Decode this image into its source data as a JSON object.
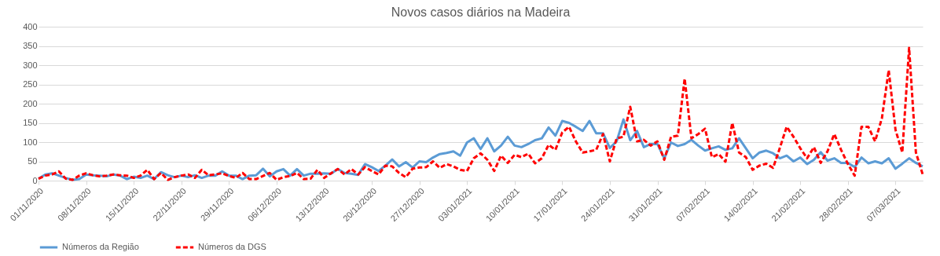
{
  "chart_data": {
    "type": "line",
    "title": "Novos casos diários na Madeira",
    "x": [
      "2020-11-01",
      "2020-11-02",
      "2020-11-03",
      "2020-11-04",
      "2020-11-05",
      "2020-11-06",
      "2020-11-07",
      "2020-11-08",
      "2020-11-09",
      "2020-11-10",
      "2020-11-11",
      "2020-11-12",
      "2020-11-13",
      "2020-11-14",
      "2020-11-15",
      "2020-11-16",
      "2020-11-17",
      "2020-11-18",
      "2020-11-19",
      "2020-11-20",
      "2020-11-21",
      "2020-11-22",
      "2020-11-23",
      "2020-11-24",
      "2020-11-25",
      "2020-11-26",
      "2020-11-27",
      "2020-11-28",
      "2020-11-29",
      "2020-11-30",
      "2020-12-01",
      "2020-12-02",
      "2020-12-03",
      "2020-12-04",
      "2020-12-05",
      "2020-12-06",
      "2020-12-07",
      "2020-12-08",
      "2020-12-09",
      "2020-12-10",
      "2020-12-11",
      "2020-12-12",
      "2020-12-13",
      "2020-12-14",
      "2020-12-15",
      "2020-12-16",
      "2020-12-17",
      "2020-12-18",
      "2020-12-19",
      "2020-12-20",
      "2020-12-21",
      "2020-12-22",
      "2020-12-23",
      "2020-12-24",
      "2020-12-25",
      "2020-12-26",
      "2020-12-27",
      "2020-12-28",
      "2020-12-29",
      "2020-12-30",
      "2020-12-31",
      "2021-01-01",
      "2021-01-02",
      "2021-01-03",
      "2021-01-04",
      "2021-01-05",
      "2021-01-06",
      "2021-01-07",
      "2021-01-08",
      "2021-01-09",
      "2021-01-10",
      "2021-01-11",
      "2021-01-12",
      "2021-01-13",
      "2021-01-14",
      "2021-01-15",
      "2021-01-16",
      "2021-01-17",
      "2021-01-18",
      "2021-01-19",
      "2021-01-20",
      "2021-01-21",
      "2021-01-22",
      "2021-01-23",
      "2021-01-24",
      "2021-01-25",
      "2021-01-26",
      "2021-01-27",
      "2021-01-28",
      "2021-01-29",
      "2021-01-30",
      "2021-01-31",
      "2021-02-01",
      "2021-02-02",
      "2021-02-03",
      "2021-02-04",
      "2021-02-05",
      "2021-02-06",
      "2021-02-07",
      "2021-02-08",
      "2021-02-09",
      "2021-02-10",
      "2021-02-11",
      "2021-02-12",
      "2021-02-13",
      "2021-02-14",
      "2021-02-15",
      "2021-02-16",
      "2021-02-17",
      "2021-02-18",
      "2021-02-19",
      "2021-02-20",
      "2021-02-21",
      "2021-02-22",
      "2021-02-23",
      "2021-02-24",
      "2021-02-25",
      "2021-02-26",
      "2021-02-27",
      "2021-02-28",
      "2021-03-01",
      "2021-03-02",
      "2021-03-03",
      "2021-03-04",
      "2021-03-05",
      "2021-03-06",
      "2021-03-07",
      "2021-03-08",
      "2021-03-09",
      "2021-03-10",
      "2021-03-11"
    ],
    "xlim": [
      "2020-11-01",
      "2021-03-11"
    ],
    "xticks": [
      {
        "value": "2020-11-01",
        "label": "01/11/2020"
      },
      {
        "value": "2020-11-08",
        "label": "08/11/2020"
      },
      {
        "value": "2020-11-15",
        "label": "15/11/2020"
      },
      {
        "value": "2020-11-22",
        "label": "22/11/2020"
      },
      {
        "value": "2020-11-29",
        "label": "29/11/2020"
      },
      {
        "value": "2020-12-06",
        "label": "06/12/2020"
      },
      {
        "value": "2020-12-13",
        "label": "13/12/2020"
      },
      {
        "value": "2020-12-20",
        "label": "20/12/2020"
      },
      {
        "value": "2020-12-27",
        "label": "27/12/2020"
      },
      {
        "value": "2021-01-03",
        "label": "03/01/2021"
      },
      {
        "value": "2021-01-10",
        "label": "10/01/2021"
      },
      {
        "value": "2021-01-17",
        "label": "17/01/2021"
      },
      {
        "value": "2021-01-24",
        "label": "24/01/2021"
      },
      {
        "value": "2021-01-31",
        "label": "31/01/2021"
      },
      {
        "value": "2021-02-07",
        "label": "07/02/2021"
      },
      {
        "value": "2021-02-14",
        "label": "14/02/2021"
      },
      {
        "value": "2021-02-21",
        "label": "21/02/2021"
      },
      {
        "value": "2021-02-28",
        "label": "28/02/2021"
      },
      {
        "value": "2021-03-07",
        "label": "07/03/2021"
      }
    ],
    "series": [
      {
        "name": "Números da Região",
        "color": "#5b9bd5",
        "line_style": "solid",
        "values": [
          5,
          16,
          19,
          13,
          7,
          2,
          4,
          16,
          14,
          13,
          11,
          16,
          13,
          4,
          10,
          7,
          13,
          4,
          22,
          14,
          9,
          13,
          9,
          14,
          7,
          13,
          13,
          24,
          13,
          13,
          4,
          13,
          14,
          31,
          11,
          24,
          30,
          13,
          30,
          13,
          18,
          18,
          19,
          18,
          30,
          20,
          18,
          15,
          43,
          35,
          25,
          39,
          55,
          37,
          48,
          34,
          50,
          48,
          60,
          69,
          72,
          76,
          65,
          99,
          110,
          82,
          110,
          76,
          91,
          114,
          91,
          87,
          95,
          105,
          110,
          138,
          117,
          155,
          150,
          140,
          129,
          155,
          123,
          123,
          85,
          102,
          159,
          105,
          129,
          87,
          95,
          95,
          58,
          99,
          90,
          95,
          106,
          91,
          78,
          84,
          89,
          80,
          84,
          110,
          84,
          58,
          73,
          78,
          71,
          58,
          65,
          50,
          60,
          43,
          54,
          74,
          52,
          58,
          46,
          46,
          35,
          60,
          45,
          50,
          45,
          58,
          31,
          44,
          58,
          46,
          37
        ]
      },
      {
        "name": "Números da DGS",
        "color": "#ff0000",
        "line_style": "dashed",
        "values": [
          5,
          13,
          16,
          24,
          5,
          2,
          13,
          19,
          14,
          11,
          13,
          16,
          14,
          13,
          7,
          13,
          28,
          4,
          20,
          2,
          9,
          13,
          16,
          7,
          28,
          14,
          16,
          19,
          12,
          7,
          20,
          4,
          4,
          12,
          20,
          2,
          9,
          12,
          20,
          4,
          5,
          28,
          7,
          19,
          30,
          16,
          30,
          16,
          35,
          25,
          16,
          39,
          37,
          20,
          9,
          31,
          34,
          35,
          50,
          33,
          43,
          37,
          28,
          25,
          58,
          71,
          54,
          25,
          65,
          46,
          67,
          61,
          70,
          45,
          58,
          93,
          80,
          125,
          140,
          102,
          73,
          76,
          80,
          121,
          50,
          110,
          114,
          192,
          102,
          106,
          91,
          102,
          54,
          114,
          117,
          265,
          110,
          121,
          135,
          61,
          69,
          49,
          150,
          73,
          61,
          28,
          39,
          44,
          33,
          85,
          140,
          114,
          84,
          58,
          87,
          46,
          76,
          121,
          80,
          43,
          13,
          140,
          140,
          102,
          162,
          287,
          132,
          73,
          345,
          73,
          16
        ]
      }
    ],
    "ylim": [
      0,
      400
    ],
    "yticks": [
      0,
      50,
      100,
      150,
      200,
      250,
      300,
      350,
      400
    ],
    "grid": "y",
    "legend": "bottom",
    "marker": "none"
  }
}
